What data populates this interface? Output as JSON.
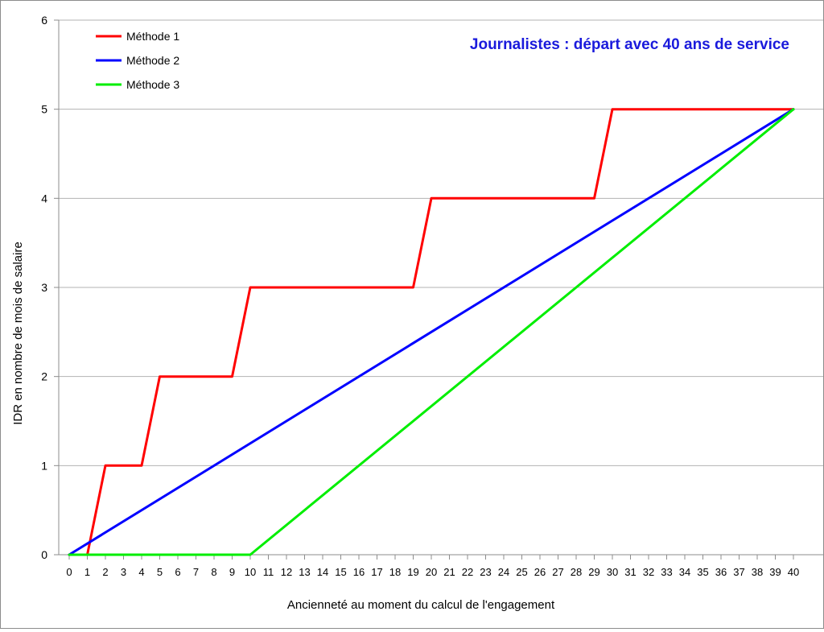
{
  "chart_data": {
    "type": "line",
    "title": "Journalistes : départ avec 40 ans de service",
    "xlabel": "Ancienneté au moment du calcul de l'engagement",
    "ylabel": "IDR en nombre de mois de salaire",
    "xlim": [
      0,
      40
    ],
    "ylim": [
      0,
      6
    ],
    "x_ticks": [
      0,
      1,
      2,
      3,
      4,
      5,
      6,
      7,
      8,
      9,
      10,
      11,
      12,
      13,
      14,
      15,
      16,
      17,
      18,
      19,
      20,
      21,
      22,
      23,
      24,
      25,
      26,
      27,
      28,
      29,
      30,
      31,
      32,
      33,
      34,
      35,
      36,
      37,
      38,
      39,
      40
    ],
    "y_ticks": [
      0,
      1,
      2,
      3,
      4,
      5,
      6
    ],
    "grid": "horizontal",
    "legend_position": "top-left",
    "title_color": "#1a1adc",
    "series": [
      {
        "name": "Méthode 1",
        "color": "#ff0000",
        "points": [
          [
            0,
            0
          ],
          [
            1,
            0
          ],
          [
            2,
            1
          ],
          [
            4,
            1
          ],
          [
            5,
            2
          ],
          [
            9,
            2
          ],
          [
            10,
            3
          ],
          [
            19,
            3
          ],
          [
            20,
            4
          ],
          [
            29,
            4
          ],
          [
            30,
            5
          ],
          [
            40,
            5
          ]
        ]
      },
      {
        "name": "Méthode 2",
        "color": "#0000ff",
        "points": [
          [
            0,
            0
          ],
          [
            40,
            5
          ]
        ]
      },
      {
        "name": "Méthode 3",
        "color": "#00ee00",
        "points": [
          [
            0,
            0
          ],
          [
            10,
            0
          ],
          [
            40,
            5
          ]
        ]
      }
    ]
  }
}
